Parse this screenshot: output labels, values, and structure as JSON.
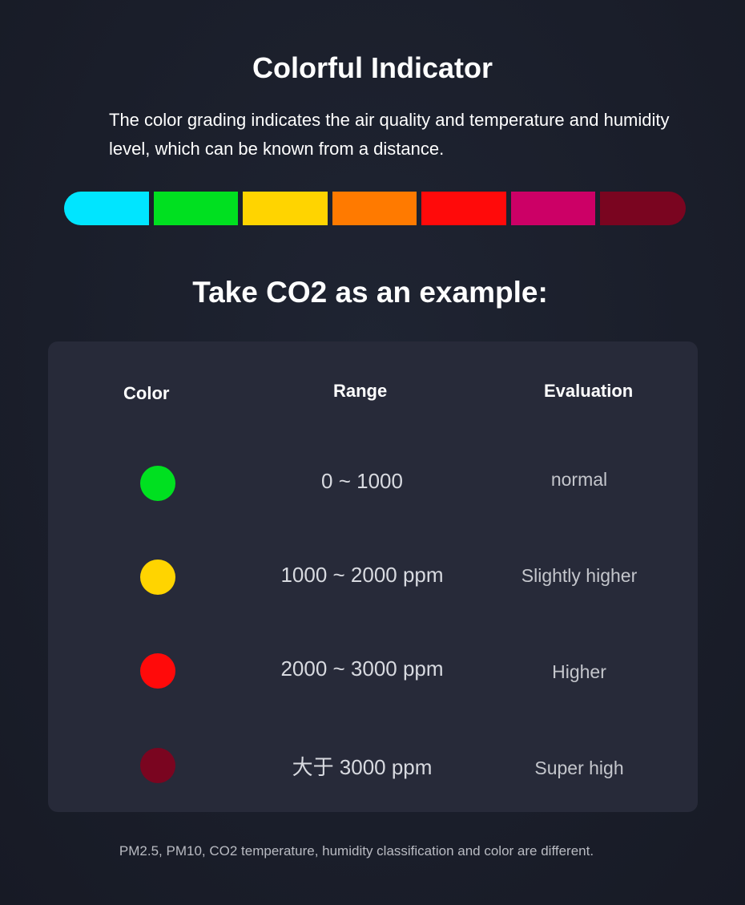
{
  "title": "Colorful Indicator",
  "description": "The color grading indicates the air quality and temperature and humidity level, which can be known from a distance.",
  "scale_colors": [
    "#00e5ff",
    "#00e020",
    "#ffd400",
    "#ff7a00",
    "#ff0a0a",
    "#cc0066",
    "#7a0520"
  ],
  "subtitle": "Take CO2 as an example:",
  "table": {
    "headers": {
      "color": "Color",
      "range": "Range",
      "evaluation": "Evaluation"
    },
    "rows": [
      {
        "color": "#00e020",
        "range": "0 ~ 1000",
        "evaluation": "normal"
      },
      {
        "color": "#ffd400",
        "range": "1000 ~ 2000 ppm",
        "evaluation": "Slightly higher"
      },
      {
        "color": "#ff0a0a",
        "range": "2000 ~ 3000 ppm",
        "evaluation": "Higher"
      },
      {
        "color": "#7a0520",
        "range": "大于 3000 ppm",
        "evaluation": "Super high"
      }
    ]
  },
  "footnote": "PM2.5, PM10, CO2 temperature, humidity classification and color are different."
}
